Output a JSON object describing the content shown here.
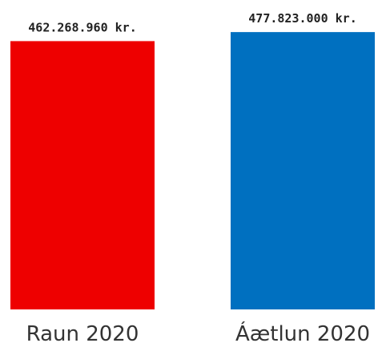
{
  "chart_data": {
    "type": "bar",
    "title": "",
    "xlabel": "",
    "ylabel": "",
    "categories": [
      "Raun 2020",
      "Áætlun 2020"
    ],
    "values": [
      462268960,
      477823000
    ],
    "value_labels": [
      "462.268.960 kr.",
      "477.823.000 kr."
    ],
    "colors": [
      "#ee0000",
      "#0070c0"
    ],
    "grid": false,
    "legend": "none"
  }
}
